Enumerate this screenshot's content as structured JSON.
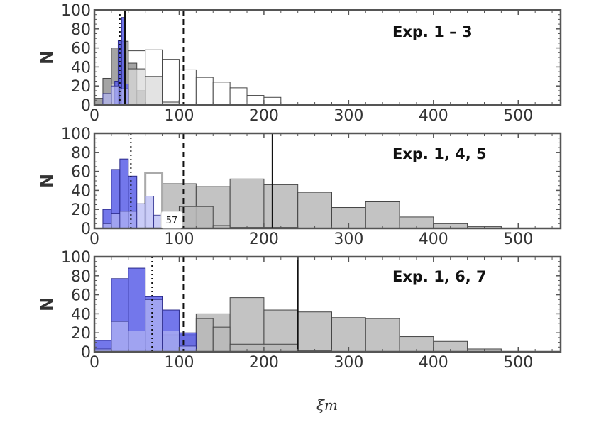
{
  "chart_data": [
    {
      "type": "bar",
      "subtype": "overlaid-histogram",
      "label": "Exp. 1 – 3",
      "ylabel": "N",
      "xlabel": "",
      "xlim": [
        0,
        550
      ],
      "ylim": [
        0,
        100
      ],
      "xticks": [
        0,
        100,
        200,
        300,
        400,
        500
      ],
      "yticks": [
        0,
        20,
        40,
        60,
        80,
        100
      ],
      "grid": false,
      "series": [
        {
          "name": "",
          "style": "white",
          "bins": [
            [
              40,
              60,
              57
            ],
            [
              60,
              80,
              58
            ],
            [
              80,
              100,
              48
            ],
            [
              100,
              120,
              37
            ],
            [
              120,
              140,
              29
            ],
            [
              140,
              160,
              24
            ],
            [
              160,
              180,
              18
            ],
            [
              180,
              200,
              10
            ],
            [
              200,
              220,
              8
            ],
            [
              220,
              280,
              1
            ]
          ]
        },
        {
          "name": "",
          "style": "gray-dark",
          "bins": [
            [
              0,
              10,
              7
            ],
            [
              10,
              20,
              28
            ],
            [
              20,
              30,
              60
            ],
            [
              30,
              40,
              67
            ],
            [
              40,
              50,
              44
            ],
            [
              50,
              60,
              15
            ]
          ]
        },
        {
          "name": "",
          "style": "gray-light",
          "bins": [
            [
              20,
              40,
              22
            ],
            [
              40,
              60,
              38
            ],
            [
              60,
              80,
              30
            ],
            [
              80,
              100,
              3
            ]
          ]
        },
        {
          "name": "",
          "style": "blue-dark",
          "bins": [
            [
              24,
              28,
              25
            ],
            [
              28,
              32,
              68
            ],
            [
              32,
              36,
              92
            ],
            [
              36,
              40,
              22
            ]
          ]
        },
        {
          "name": "",
          "style": "blue-light",
          "bins": [
            [
              10,
              20,
              12
            ],
            [
              20,
              30,
              20
            ],
            [
              30,
              40,
              17
            ]
          ]
        }
      ],
      "vlines": [
        {
          "x": 30,
          "style": "dotted"
        },
        {
          "x": 36,
          "style": "solid"
        },
        {
          "x": 105,
          "style": "dashed"
        }
      ]
    },
    {
      "type": "bar",
      "subtype": "overlaid-histogram",
      "label": "Exp. 1, 4, 5",
      "ylabel": "N",
      "xlabel": "",
      "xlim": [
        0,
        550
      ],
      "ylim": [
        0,
        100
      ],
      "xticks": [
        0,
        100,
        200,
        300,
        400,
        500
      ],
      "yticks": [
        0,
        20,
        40,
        60,
        80,
        100
      ],
      "grid": false,
      "series": [
        {
          "name": "",
          "style": "gray",
          "bins": [
            [
              80,
              120,
              47
            ],
            [
              120,
              160,
              44
            ],
            [
              160,
              200,
              52
            ],
            [
              200,
              240,
              46
            ],
            [
              240,
              280,
              38
            ],
            [
              280,
              320,
              22
            ],
            [
              320,
              360,
              28
            ],
            [
              360,
              400,
              12
            ],
            [
              400,
              440,
              5
            ],
            [
              440,
              480,
              2
            ]
          ]
        },
        {
          "name": "",
          "style": "gray",
          "bins": [
            [
              60,
              80,
              22
            ],
            [
              80,
              100,
              15
            ],
            [
              100,
              140,
              23
            ],
            [
              140,
              160,
              3
            ],
            [
              160,
              240,
              1
            ]
          ]
        },
        {
          "name": "",
          "style": "white-gray-outline",
          "bins": [
            [
              60,
              80,
              58
            ]
          ]
        },
        {
          "name": "",
          "style": "blue-dark",
          "bins": [
            [
              10,
              20,
              20
            ],
            [
              20,
              30,
              62
            ],
            [
              30,
              40,
              73
            ],
            [
              40,
              50,
              55
            ]
          ]
        },
        {
          "name": "",
          "style": "blue-light",
          "bins": [
            [
              10,
              20,
              5
            ],
            [
              20,
              30,
              16
            ],
            [
              30,
              40,
              18
            ],
            [
              40,
              50,
              18
            ],
            [
              50,
              60,
              26
            ],
            [
              60,
              70,
              34
            ],
            [
              70,
              80,
              14
            ],
            [
              80,
              90,
              7
            ]
          ]
        }
      ],
      "vlines": [
        {
          "x": 43,
          "style": "dotted"
        },
        {
          "x": 105,
          "style": "dashed"
        },
        {
          "x": 210,
          "style": "solid"
        }
      ],
      "annotation": "57"
    },
    {
      "type": "bar",
      "subtype": "overlaid-histogram",
      "label": "Exp. 1, 6, 7",
      "ylabel": "N",
      "xlabel": "ξm",
      "xlim": [
        0,
        550
      ],
      "ylim": [
        0,
        100
      ],
      "xticks": [
        0,
        100,
        200,
        300,
        400,
        500
      ],
      "yticks": [
        0,
        20,
        40,
        60,
        80,
        100
      ],
      "grid": false,
      "series": [
        {
          "name": "",
          "style": "gray",
          "bins": [
            [
              120,
              160,
              40
            ],
            [
              160,
              200,
              57
            ],
            [
              200,
              240,
              44
            ],
            [
              240,
              280,
              42
            ],
            [
              280,
              320,
              36
            ],
            [
              320,
              360,
              35
            ],
            [
              360,
              400,
              16
            ],
            [
              400,
              440,
              11
            ],
            [
              440,
              480,
              3
            ]
          ]
        },
        {
          "name": "",
          "style": "gray",
          "bins": [
            [
              80,
              120,
              18
            ],
            [
              120,
              140,
              35
            ],
            [
              140,
              160,
              26
            ],
            [
              160,
              240,
              8
            ],
            [
              240,
              280,
              1
            ]
          ]
        },
        {
          "name": "",
          "style": "blue-dark",
          "bins": [
            [
              0,
              20,
              12
            ],
            [
              20,
              40,
              77
            ],
            [
              40,
              60,
              88
            ],
            [
              60,
              80,
              58
            ],
            [
              80,
              100,
              44
            ],
            [
              100,
              120,
              20
            ]
          ]
        },
        {
          "name": "",
          "style": "blue-light",
          "bins": [
            [
              0,
              20,
              3
            ],
            [
              20,
              40,
              32
            ],
            [
              40,
              60,
              22
            ],
            [
              60,
              80,
              55
            ],
            [
              80,
              100,
              22
            ],
            [
              100,
              120,
              6
            ]
          ]
        }
      ],
      "vlines": [
        {
          "x": 68,
          "style": "dotted"
        },
        {
          "x": 105,
          "style": "dashed"
        },
        {
          "x": 240,
          "style": "solid"
        }
      ]
    }
  ],
  "colors": {
    "axis": "#555555",
    "text": "#333333",
    "gray_fill": "#b8b8b8",
    "gray_edge": "#444444",
    "gray_dark_fill": "#8d8d8d",
    "gray_light_fill": "#d9d9d9",
    "white_fill": "#ffffff",
    "blue_dark_fill": "#5b5fe8",
    "blue_light_fill": "#b4b7f4",
    "blue_edge": "#2a2a8a"
  }
}
